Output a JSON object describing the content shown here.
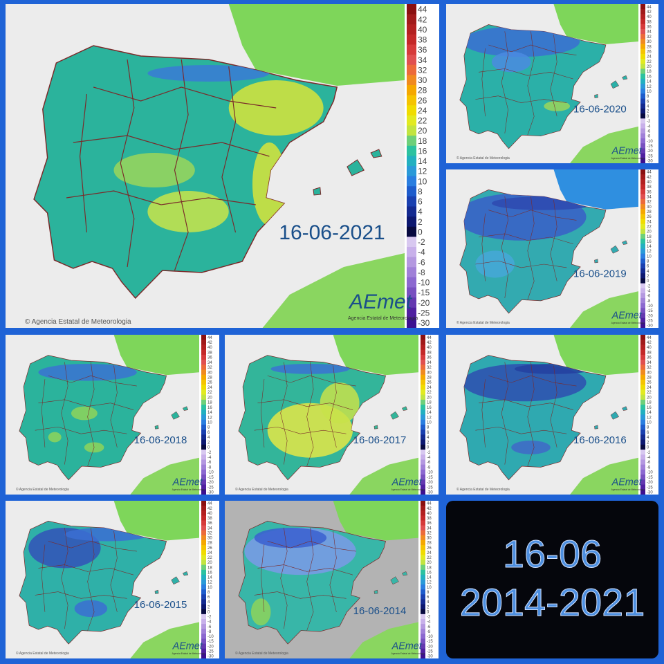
{
  "panels": [
    {
      "date": "16-06-2021"
    },
    {
      "date": "16-06-2020"
    },
    {
      "date": "16-06-2019"
    },
    {
      "date": "16-06-2018"
    },
    {
      "date": "16-06-2017"
    },
    {
      "date": "16-06-2016"
    },
    {
      "date": "16-06-2015"
    },
    {
      "date": "16-06-2014"
    }
  ],
  "scale": [
    44,
    42,
    40,
    38,
    36,
    34,
    32,
    30,
    28,
    26,
    24,
    22,
    20,
    18,
    16,
    14,
    12,
    10,
    8,
    6,
    4,
    2,
    0,
    -2,
    -4,
    -6,
    -8,
    -10,
    -15,
    -20,
    -25,
    -30
  ],
  "copyright": "© Agencia Estatal de Meteorologia",
  "logo": "AEmet",
  "logo_subtitle": "Agencia Estatal de Meteorología",
  "summary": {
    "day": "16-06",
    "years": "2014-2021"
  }
}
